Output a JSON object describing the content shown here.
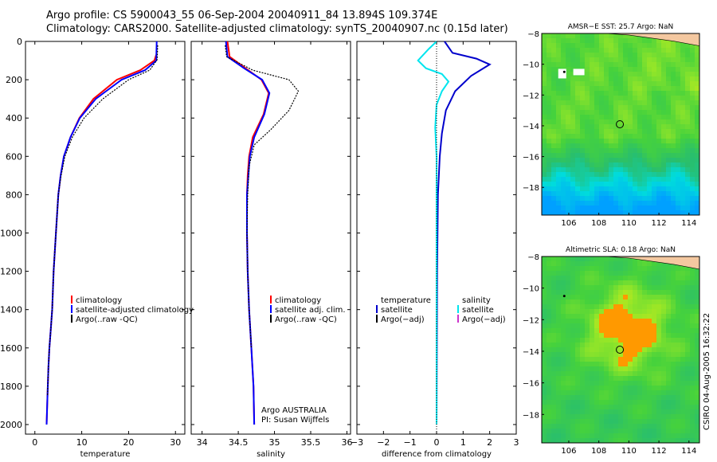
{
  "header": {
    "line1": "Argo profile: CS 5900043_55 06-Sep-2004 20040911_84 13.894S 109.374E",
    "line2": "Climatology: CARS2000. Satellite-adjusted climatology: synTS_20040907.nc (0.15d later)"
  },
  "credit": "CSIRO 04-Aug-2005 16:32:22",
  "chart_data": [
    {
      "type": "line",
      "id": "temperature",
      "xlabel": "temperature",
      "ylabel": "",
      "xlim": [
        -2,
        32
      ],
      "ylim": [
        0,
        2050
      ],
      "yreverse": true,
      "xticks": [
        0,
        10,
        20,
        30
      ],
      "xticklabels": [
        "0",
        "10",
        "20",
        "30"
      ],
      "yticks": [
        0,
        200,
        400,
        600,
        800,
        1000,
        1200,
        1400,
        1600,
        1800,
        2000
      ],
      "yticklabels": [
        "0",
        "200",
        "400",
        "600",
        "800",
        "1000",
        "1200",
        "1400",
        "1600",
        "1800",
        "2000"
      ],
      "legend": [
        "climatology",
        "satellite-adjusted climatology",
        "Argo(..raw -QC)"
      ],
      "series": [
        {
          "name": "climatology",
          "color": "#ff0000",
          "x": [
            25.9,
            25.5,
            22.5,
            17.5,
            12.5,
            9.5,
            7.6,
            6.2,
            5.5,
            5.0,
            4.5,
            4.0,
            3.7,
            3.4,
            3.1,
            2.9,
            2.7,
            2.5
          ],
          "y": [
            70,
            100,
            150,
            200,
            300,
            400,
            500,
            600,
            700,
            800,
            1000,
            1200,
            1400,
            1500,
            1600,
            1700,
            1850,
            2000
          ]
        },
        {
          "name": "satellite-adjusted climatology",
          "color": "#0000ff",
          "x": [
            26.0,
            25.9,
            23.5,
            18.5,
            13.0,
            9.6,
            7.6,
            6.2,
            5.5,
            5.0,
            4.5,
            4.0,
            3.7,
            3.4,
            3.1,
            2.9,
            2.7,
            2.5
          ],
          "y": [
            0,
            100,
            150,
            200,
            300,
            400,
            500,
            600,
            700,
            800,
            1000,
            1200,
            1400,
            1500,
            1600,
            1700,
            1850,
            2000
          ]
        },
        {
          "name": "Argo(..raw -QC)",
          "color": "#000000",
          "x": [
            26.2,
            26.1,
            24.5,
            20.0,
            14.5,
            10.5,
            8.0,
            6.4,
            5.6,
            5.0,
            4.5,
            4.0,
            3.7,
            3.4,
            3.1,
            2.9,
            2.7
          ],
          "y": [
            20,
            95,
            150,
            200,
            300,
            400,
            500,
            600,
            700,
            800,
            1000,
            1200,
            1400,
            1500,
            1600,
            1700,
            1850
          ]
        }
      ]
    },
    {
      "type": "line",
      "id": "salinity",
      "xlabel": "salinity",
      "ylabel": "",
      "xlim": [
        33.85,
        36.05
      ],
      "ylim": [
        0,
        2050
      ],
      "yreverse": true,
      "xticks": [
        34,
        34.5,
        35,
        35.5,
        36
      ],
      "xticklabels": [
        "34",
        "34.5",
        "35",
        "35.5",
        "36"
      ],
      "legend": [
        "climatology",
        "satellite adj. clim.",
        "Argo(..raw -QC)"
      ],
      "annotation": [
        "Argo AUSTRALIA",
        "PI: Susan Wijffels"
      ],
      "series": [
        {
          "name": "climatology",
          "color": "#ff0000",
          "x": [
            34.35,
            34.38,
            34.6,
            34.82,
            34.92,
            34.85,
            34.7,
            34.65,
            34.63,
            34.62,
            34.62,
            34.63,
            34.65,
            34.68,
            34.71,
            34.72
          ],
          "y": [
            0,
            80,
            140,
            200,
            270,
            380,
            500,
            600,
            700,
            800,
            1000,
            1200,
            1400,
            1600,
            1800,
            2000
          ]
        },
        {
          "name": "satellite adj. clim.",
          "color": "#0000ff",
          "x": [
            34.33,
            34.35,
            34.58,
            34.83,
            34.93,
            34.86,
            34.72,
            34.66,
            34.64,
            34.62,
            34.62,
            34.63,
            34.65,
            34.68,
            34.71,
            34.72
          ],
          "y": [
            0,
            80,
            140,
            200,
            270,
            380,
            500,
            600,
            700,
            800,
            1000,
            1200,
            1400,
            1600,
            1800,
            2000
          ]
        },
        {
          "name": "Argo(..raw -QC)",
          "color": "#000000",
          "x": [
            34.32,
            34.34,
            34.7,
            35.2,
            35.33,
            35.2,
            34.95,
            34.72,
            34.65,
            34.63,
            34.62,
            34.63,
            34.65,
            34.68
          ],
          "y": [
            20,
            80,
            150,
            200,
            260,
            360,
            460,
            540,
            650,
            800,
            1000,
            1200,
            1400,
            1600
          ]
        }
      ]
    },
    {
      "type": "line",
      "id": "difference",
      "xlabel": "difference from climatology",
      "ylabel": "",
      "xlim": [
        -3,
        3
      ],
      "ylim": [
        0,
        2050
      ],
      "yreverse": true,
      "xticks": [
        -3,
        -2,
        -1,
        0,
        1,
        2,
        3
      ],
      "xticklabels": [
        "−3",
        "−2",
        "−1",
        "0",
        "1",
        "2",
        "3"
      ],
      "legend": [
        "temperature",
        "satellite",
        "Argo(−adj)",
        "salinity",
        "satellite",
        "Argo(−adj)"
      ],
      "series": [
        {
          "name": "temperature satellite",
          "color": "#0000cc",
          "x": [
            0.3,
            0.6,
            1.5,
            2.0,
            1.3,
            0.7,
            0.35,
            0.2,
            0.12,
            0.05,
            0.02,
            0.0
          ],
          "y": [
            0,
            60,
            90,
            120,
            180,
            260,
            360,
            480,
            600,
            800,
            1200,
            2000
          ]
        },
        {
          "name": "salinity satellite",
          "color": "#00e5ee",
          "x": [
            0.0,
            -0.3,
            -0.7,
            -0.4,
            0.2,
            0.45,
            0.2,
            0.0,
            -0.05,
            0.0,
            0.0,
            0.0,
            0.0
          ],
          "y": [
            0,
            40,
            100,
            140,
            170,
            210,
            260,
            330,
            450,
            600,
            800,
            1200,
            2000
          ]
        }
      ]
    }
  ],
  "maps": [
    {
      "title": "AMSR−E SST: 25.7  Argo: NaN",
      "type": "sst",
      "lon_ticks": [
        106,
        108,
        110,
        112,
        114
      ],
      "lat_ticks": [
        -8,
        -10,
        -12,
        -14,
        -16,
        -18
      ],
      "lon_labels": [
        "106",
        "108",
        "110",
        "112",
        "114"
      ],
      "lat_labels": [
        "−8",
        "−10",
        "−12",
        "−14",
        "−16",
        "−18"
      ],
      "argo_marker": {
        "lon": 109.4,
        "lat": -13.9
      }
    },
    {
      "title": "Altimetric SLA: 0.18  Argo: NaN",
      "type": "sla",
      "lon_ticks": [
        106,
        108,
        110,
        112,
        114
      ],
      "lat_ticks": [
        -8,
        -10,
        -12,
        -14,
        -16,
        -18
      ],
      "lon_labels": [
        "106",
        "108",
        "110",
        "112",
        "114"
      ],
      "lat_labels": [
        "−8",
        "−10",
        "−12",
        "−14",
        "−16",
        "−18"
      ],
      "argo_marker": {
        "lon": 109.4,
        "lat": -13.9
      }
    }
  ]
}
